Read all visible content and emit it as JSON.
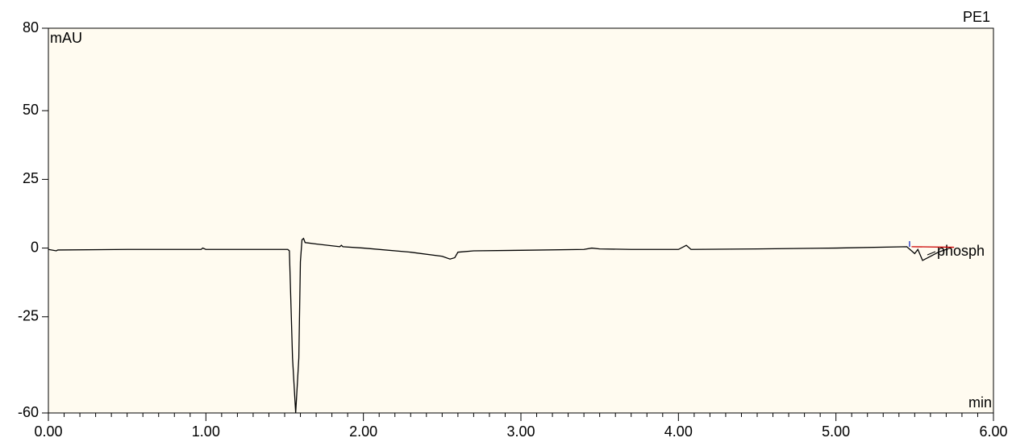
{
  "chart_data": {
    "type": "line",
    "detector": "PE1",
    "y_unit": "mAU",
    "x_unit": "min",
    "peak_label": "phosph",
    "xlim": [
      0,
      6
    ],
    "ylim": [
      -60,
      80
    ],
    "xticks": [
      {
        "value": 0,
        "label": "0.00"
      },
      {
        "value": 1,
        "label": "1.00"
      },
      {
        "value": 2,
        "label": "2.00"
      },
      {
        "value": 3,
        "label": "3.00"
      },
      {
        "value": 4,
        "label": "4.00"
      },
      {
        "value": 5,
        "label": "5.00"
      },
      {
        "value": 6,
        "label": "6.00"
      }
    ],
    "yticks": [
      -60,
      -25,
      0,
      25,
      50,
      80
    ],
    "series": [
      {
        "color": "#000000",
        "x": [
          0,
          0.05,
          0.06,
          0.5,
          0.97,
          0.98,
          1.0,
          1.52,
          1.53,
          1.55,
          1.57,
          1.59,
          1.6,
          1.61,
          1.62,
          1.63,
          1.7,
          1.85,
          1.86,
          1.87,
          2.0,
          2.3,
          2.5,
          2.55,
          2.58,
          2.6,
          2.7,
          3.0,
          3.4,
          3.45,
          3.5,
          3.7,
          4.0,
          4.05,
          4.08,
          4.5,
          5.0,
          5.45,
          5.48,
          5.5,
          5.52,
          5.55,
          5.6,
          5.65,
          5.7
        ],
        "values": [
          -0.5,
          -1,
          -0.7,
          -0.5,
          -0.5,
          0,
          -0.5,
          -0.5,
          -1,
          -40,
          -60,
          -40,
          -5,
          3,
          3.5,
          2,
          1.5,
          0.5,
          1,
          0.5,
          0,
          -1.5,
          -3,
          -4,
          -3.5,
          -1.5,
          -1,
          -0.8,
          -0.5,
          0,
          -0.3,
          -0.5,
          -0.5,
          1,
          -0.5,
          -0.3,
          0,
          0.5,
          -1,
          -2,
          -0.5,
          -4.5,
          -3,
          -1.5,
          -0.5
        ]
      },
      {
        "color": "#cc0000",
        "x": [
          5.48,
          5.75
        ],
        "values": [
          0.5,
          0.3
        ]
      }
    ]
  }
}
